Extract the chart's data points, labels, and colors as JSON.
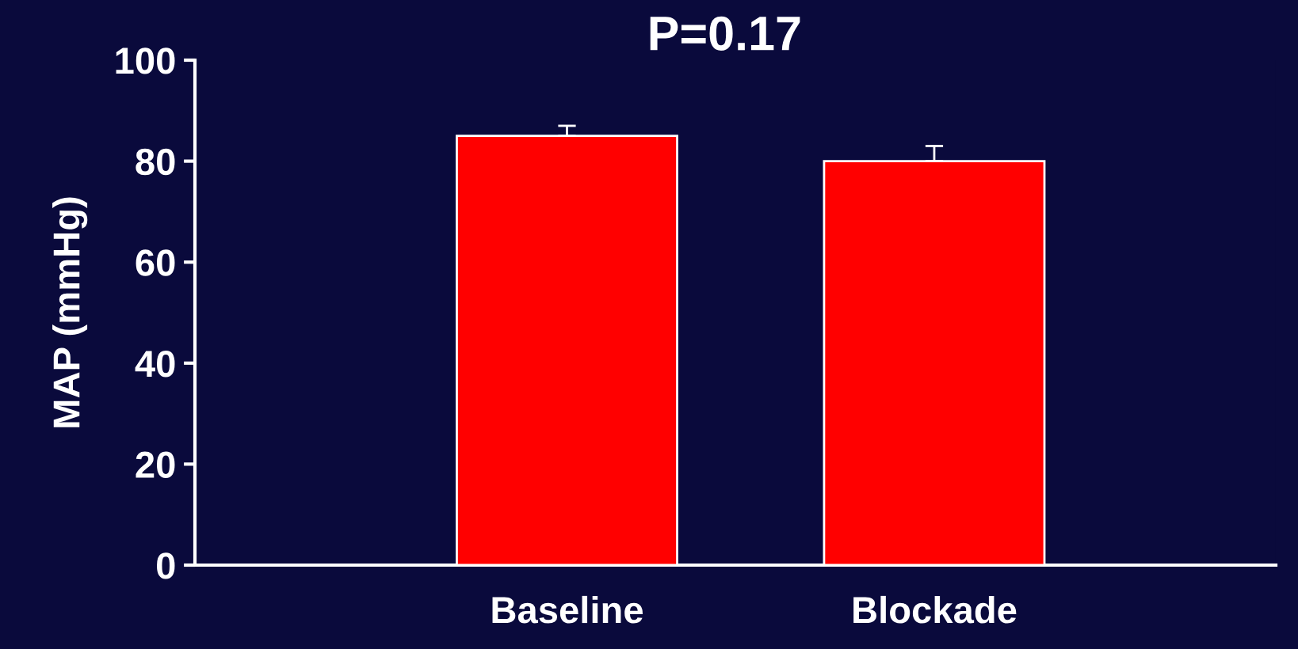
{
  "chart_data": {
    "type": "bar",
    "title": "P=0.17",
    "ylabel": "MAP (mmHg)",
    "categories": [
      "Baseline",
      "Blockade"
    ],
    "values": [
      85,
      80
    ],
    "color": "#ff0000",
    "errors": [
      [
        85,
        87
      ],
      [
        80,
        83
      ]
    ],
    "ylim": [
      0,
      100
    ],
    "yticks": [
      0,
      20,
      40,
      60,
      80,
      100
    ],
    "grid": false,
    "legend": false
  }
}
